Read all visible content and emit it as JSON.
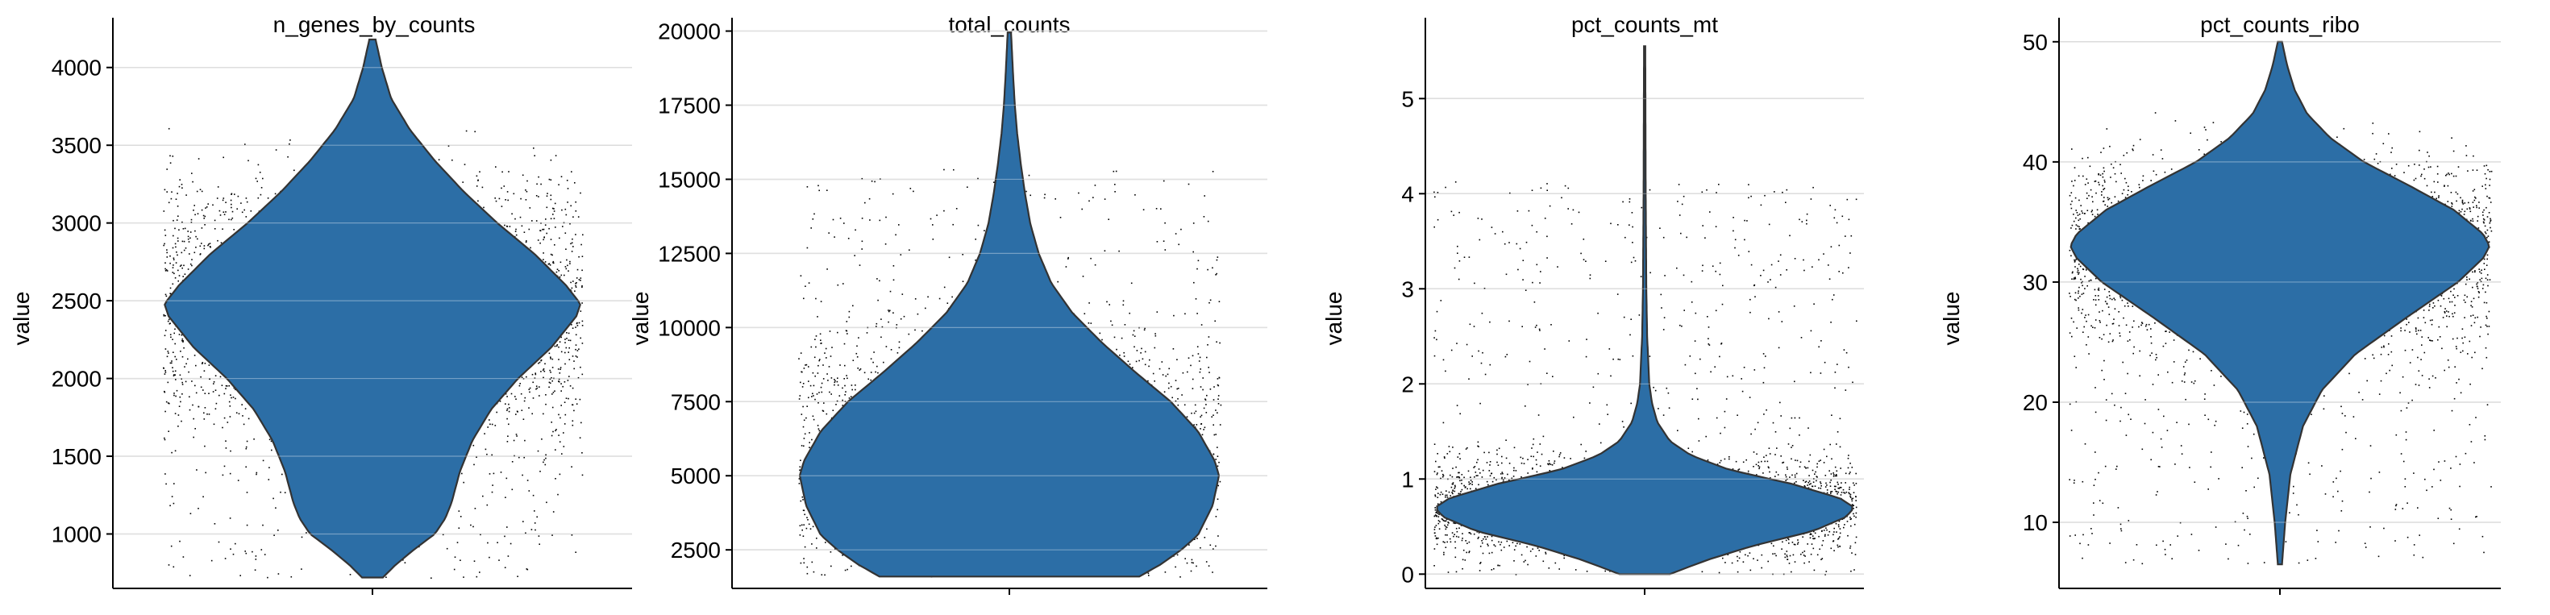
{
  "figure": {
    "background": "#ffffff",
    "violin_color": "#2c6ea6",
    "violin_edge_color": "#333333",
    "point_color": "#000000",
    "grid_color": "#cfcfcf"
  },
  "chart_data": [
    {
      "type": "violin",
      "title": "n_genes_by_counts",
      "xlabel": "",
      "ylabel": "value",
      "ylim": [
        650,
        4320
      ],
      "yticks": [
        1000,
        1500,
        2000,
        2500,
        3000,
        3500,
        4000
      ],
      "ytick_labels": [
        "1000",
        "1500",
        "2000",
        "2500",
        "3000",
        "3500",
        "4000"
      ],
      "grid": true,
      "y_min": 720,
      "y_max": 4180,
      "density": [
        [
          720,
          0.05
        ],
        [
          800,
          0.11
        ],
        [
          900,
          0.2
        ],
        [
          1000,
          0.3
        ],
        [
          1100,
          0.35
        ],
        [
          1200,
          0.38
        ],
        [
          1400,
          0.42
        ],
        [
          1600,
          0.48
        ],
        [
          1800,
          0.57
        ],
        [
          2000,
          0.7
        ],
        [
          2200,
          0.86
        ],
        [
          2400,
          0.98
        ],
        [
          2480,
          1.0
        ],
        [
          2600,
          0.93
        ],
        [
          2800,
          0.78
        ],
        [
          3000,
          0.6
        ],
        [
          3200,
          0.44
        ],
        [
          3400,
          0.3
        ],
        [
          3600,
          0.18
        ],
        [
          3800,
          0.09
        ],
        [
          4000,
          0.045
        ],
        [
          4180,
          0.015
        ]
      ],
      "points": {
        "count": 3200,
        "y_range": [
          720,
          4180
        ],
        "center": 2450,
        "spread": 650
      }
    },
    {
      "type": "violin",
      "title": "total_counts",
      "xlabel": "",
      "ylabel": "value",
      "ylim": [
        1200,
        20450
      ],
      "yticks": [
        2500,
        5000,
        7500,
        10000,
        12500,
        15000,
        17500,
        20000
      ],
      "ytick_labels": [
        "2500",
        "5000",
        "7500",
        "10000",
        "12500",
        "15000",
        "17500",
        "20000"
      ],
      "grid": true,
      "y_min": 1600,
      "y_max": 19950,
      "density": [
        [
          1600,
          0.62
        ],
        [
          2000,
          0.72
        ],
        [
          2500,
          0.82
        ],
        [
          3000,
          0.9
        ],
        [
          4000,
          0.97
        ],
        [
          5000,
          1.0
        ],
        [
          5500,
          0.98
        ],
        [
          6500,
          0.9
        ],
        [
          7500,
          0.77
        ],
        [
          8500,
          0.6
        ],
        [
          9500,
          0.44
        ],
        [
          10500,
          0.3
        ],
        [
          11500,
          0.2
        ],
        [
          12500,
          0.14
        ],
        [
          13500,
          0.1
        ],
        [
          14500,
          0.075
        ],
        [
          15500,
          0.055
        ],
        [
          16500,
          0.038
        ],
        [
          17500,
          0.026
        ],
        [
          18500,
          0.018
        ],
        [
          19950,
          0.008
        ]
      ],
      "points": {
        "count": 2600,
        "y_range": [
          1600,
          19950
        ],
        "center": 5800,
        "spread": 3200
      }
    },
    {
      "type": "violin",
      "title": "pct_counts_mt",
      "xlabel": "",
      "ylabel": "value",
      "ylim": [
        -0.15,
        5.85
      ],
      "yticks": [
        0,
        1,
        2,
        3,
        4,
        5
      ],
      "ytick_labels": [
        "0",
        "1",
        "2",
        "3",
        "4",
        "5"
      ],
      "grid": true,
      "y_min": 0.0,
      "y_max": 5.55,
      "density": [
        [
          0.0,
          0.12
        ],
        [
          0.15,
          0.3
        ],
        [
          0.3,
          0.52
        ],
        [
          0.45,
          0.8
        ],
        [
          0.6,
          0.96
        ],
        [
          0.7,
          1.0
        ],
        [
          0.8,
          0.93
        ],
        [
          0.95,
          0.7
        ],
        [
          1.1,
          0.4
        ],
        [
          1.25,
          0.22
        ],
        [
          1.4,
          0.12
        ],
        [
          1.6,
          0.06
        ],
        [
          1.8,
          0.035
        ],
        [
          2.0,
          0.022
        ],
        [
          2.5,
          0.012
        ],
        [
          3.0,
          0.008
        ],
        [
          4.0,
          0.005
        ],
        [
          5.55,
          0.003
        ]
      ],
      "points": {
        "count": 3000,
        "y_range": [
          0.0,
          5.55
        ],
        "center": 0.72,
        "spread": 0.42
      }
    },
    {
      "type": "violin",
      "title": "pct_counts_ribo",
      "xlabel": "",
      "ylabel": "value",
      "ylim": [
        4.5,
        52.0
      ],
      "yticks": [
        10,
        20,
        30,
        40,
        50
      ],
      "ytick_labels": [
        "10",
        "20",
        "30",
        "40",
        "50"
      ],
      "grid": true,
      "y_min": 6.5,
      "y_max": 50.0,
      "density": [
        [
          6.5,
          0.01
        ],
        [
          10,
          0.025
        ],
        [
          14,
          0.05
        ],
        [
          18,
          0.11
        ],
        [
          21,
          0.2
        ],
        [
          24,
          0.36
        ],
        [
          27,
          0.6
        ],
        [
          30,
          0.85
        ],
        [
          32,
          0.97
        ],
        [
          33,
          1.0
        ],
        [
          34,
          0.97
        ],
        [
          36,
          0.83
        ],
        [
          38,
          0.62
        ],
        [
          40,
          0.4
        ],
        [
          42,
          0.24
        ],
        [
          44,
          0.13
        ],
        [
          46,
          0.07
        ],
        [
          48,
          0.035
        ],
        [
          50,
          0.01
        ]
      ],
      "points": {
        "count": 3000,
        "y_range": [
          6.5,
          50.0
        ],
        "center": 32.5,
        "spread": 6.5
      }
    }
  ]
}
